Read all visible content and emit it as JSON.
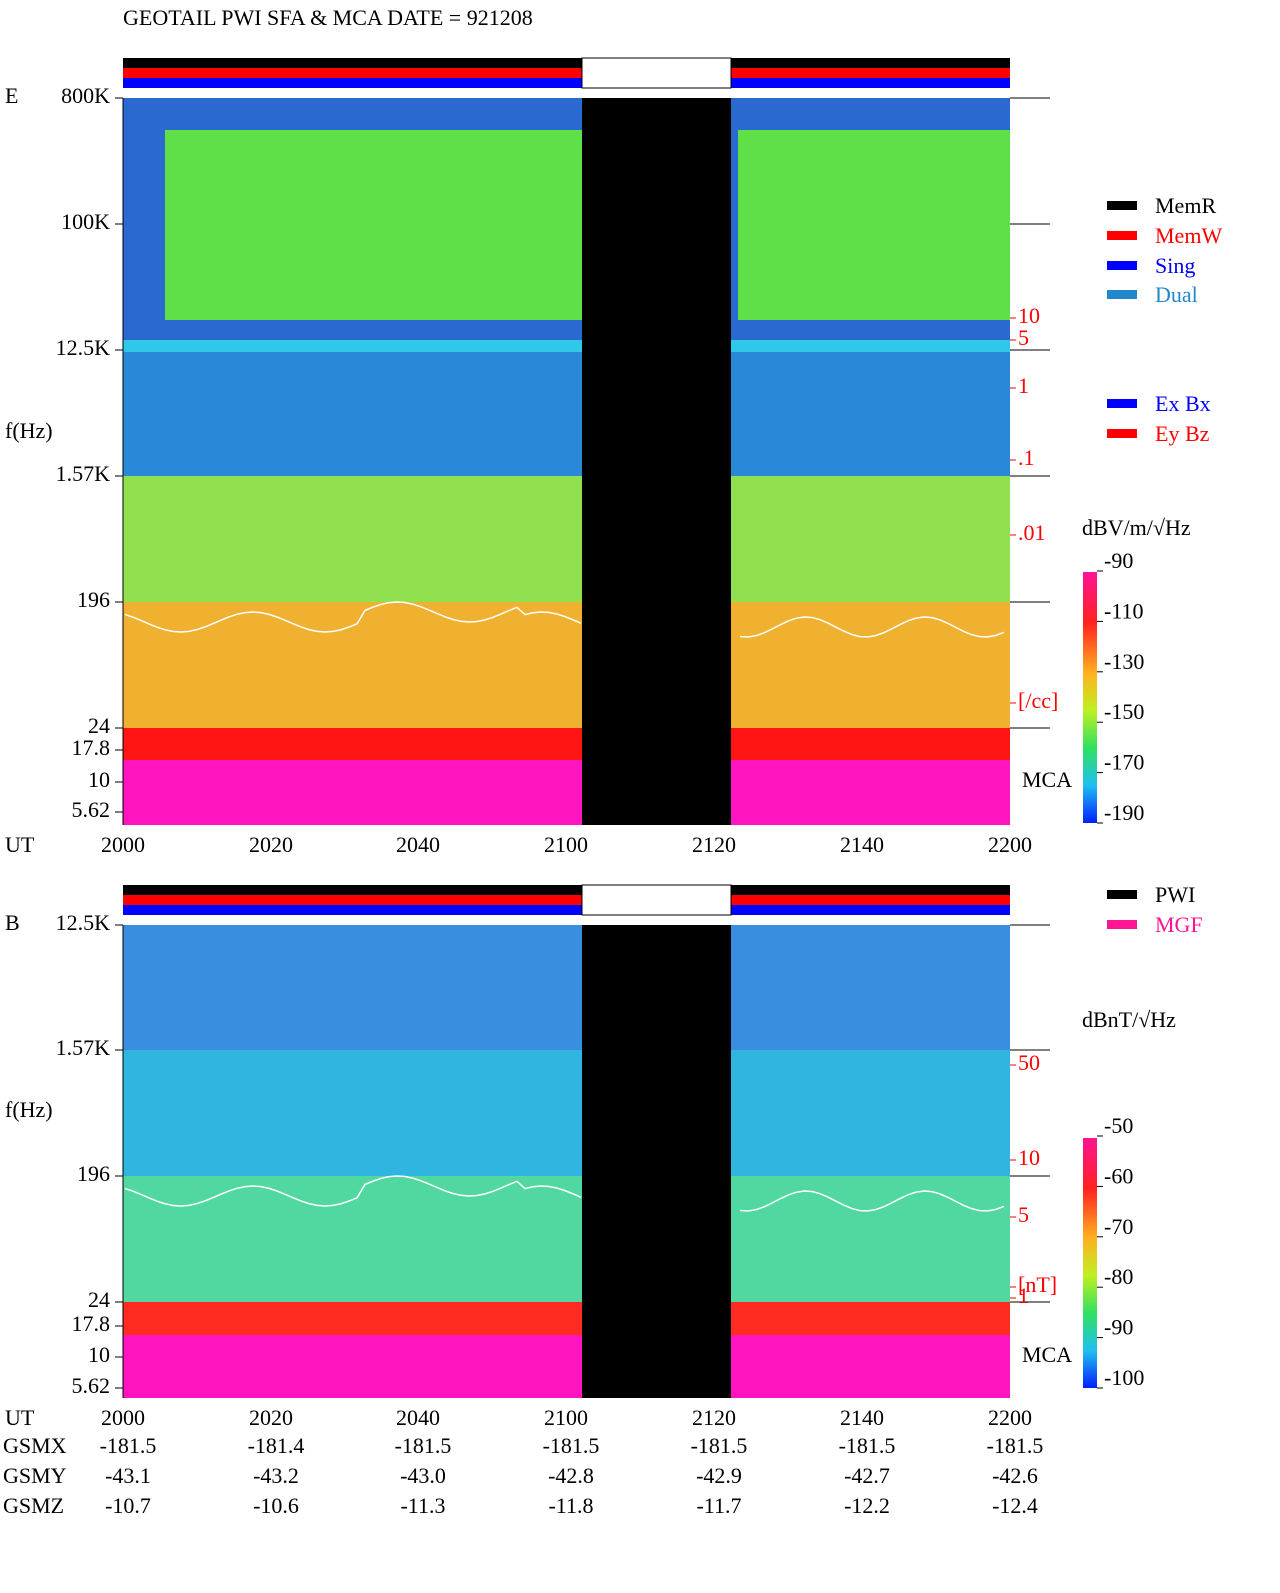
{
  "title": "GEOTAIL  PWI SFA & MCA   DATE = 921208",
  "panels": [
    {
      "label": "E",
      "y_axis_label": "f(Hz)",
      "x_axis_label": "UT",
      "y_ticks": [
        "800K",
        "100K",
        "12.5K",
        "1.57K",
        "196",
        "24",
        "17.8",
        "10",
        "5.62"
      ],
      "x_ticks": [
        "2000",
        "2020",
        "2040",
        "2100",
        "2120",
        "2140",
        "2200"
      ],
      "right_scale": [
        "10",
        "5",
        "1",
        ".1",
        ".01",
        "[/cc]"
      ],
      "mca": "MCA",
      "colorbar": {
        "label": "dBV/m/√Hz",
        "ticks": [
          "-90",
          "-110",
          "-130",
          "-150",
          "-170",
          "-190"
        ]
      }
    },
    {
      "label": "B",
      "y_axis_label": "f(Hz)",
      "x_axis_label": "UT",
      "y_ticks": [
        "12.5K",
        "1.57K",
        "196",
        "24",
        "17.8",
        "10",
        "5.62"
      ],
      "x_ticks": [
        "2000",
        "2020",
        "2040",
        "2100",
        "2120",
        "2140",
        "2200"
      ],
      "right_scale": [
        "50",
        "10",
        "5",
        "1",
        "[nT]"
      ],
      "mca": "MCA",
      "colorbar": {
        "label": "dBnT/√Hz",
        "ticks": [
          "-50",
          "-60",
          "-70",
          "-80",
          "-90",
          "-100"
        ]
      }
    }
  ],
  "legend_modes": [
    {
      "name": "MemR",
      "color": "#000000"
    },
    {
      "name": "MemW",
      "color": "#ff0000"
    },
    {
      "name": "Sing",
      "color": "#0000ff"
    },
    {
      "name": "Dual",
      "color": "#2288cc"
    }
  ],
  "legend_components": [
    {
      "name": "Ex Bx",
      "color": "#0000ff"
    },
    {
      "name": "Ey Bz",
      "color": "#ff0000"
    }
  ],
  "legend_source": [
    {
      "name": "PWI",
      "color": "#000000"
    },
    {
      "name": "MGF",
      "color": "#ff1493"
    }
  ],
  "orbit": [
    {
      "name": "GSMX",
      "values": [
        "-181.5",
        "-181.4",
        "-181.5",
        "-181.5",
        "-181.5",
        "-181.5",
        "-181.5"
      ]
    },
    {
      "name": "GSMY",
      "values": [
        "-43.1",
        "-43.2",
        "-43.0",
        "-42.8",
        "-42.9",
        "-42.7",
        "-42.6"
      ]
    },
    {
      "name": "GSMZ",
      "values": [
        "-10.7",
        "-10.6",
        "-11.3",
        "-11.8",
        "-11.7",
        "-12.2",
        "-12.4"
      ]
    }
  ]
}
